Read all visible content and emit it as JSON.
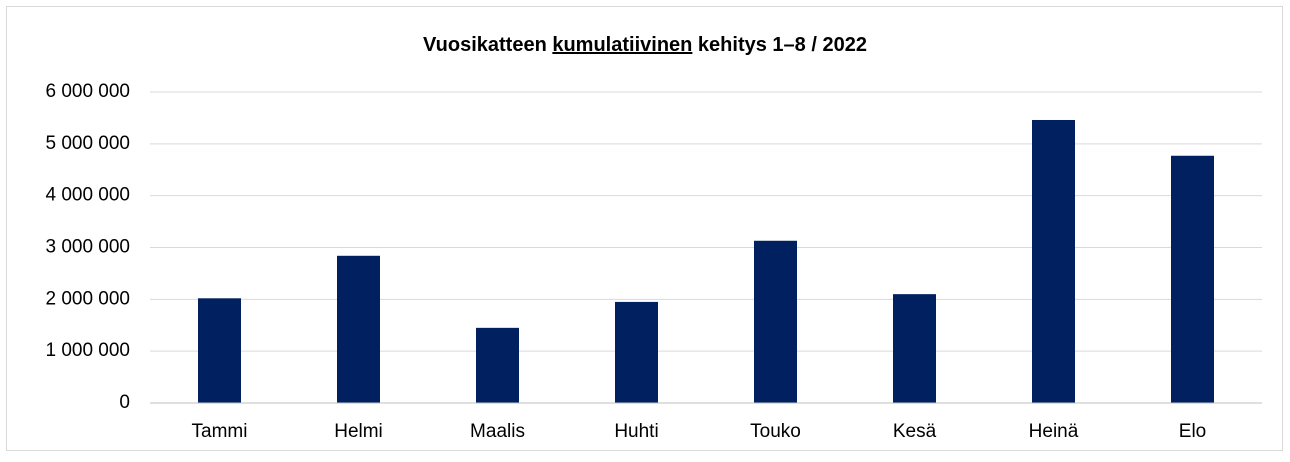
{
  "chart_data": {
    "type": "bar",
    "title": "Vuosikatteen kumulatiivinen kehitys 1–8 / 2022",
    "title_underlined": "kumulatiivinen",
    "categories": [
      "Tammi",
      "Helmi",
      "Maalis",
      "Huhti",
      "Touko",
      "Kesä",
      "Heinä",
      "Elo"
    ],
    "values": [
      2020000,
      2840000,
      1450000,
      1950000,
      3130000,
      2100000,
      5460000,
      4770000
    ],
    "color": "#002060",
    "ylim": [
      0,
      6000000
    ],
    "yticks": [
      0,
      {
        "value": 1000000,
        "label": "1 000 000"
      },
      {
        "value": 2000000,
        "label": "2 000 000"
      },
      {
        "value": 3000000,
        "label": "3 000 000"
      },
      {
        "value": 4000000,
        "label": "4 000 000"
      },
      {
        "value": 5000000,
        "label": "5 000 000"
      },
      {
        "value": 6000000,
        "label": "6 000 000"
      }
    ],
    "grid": true
  }
}
